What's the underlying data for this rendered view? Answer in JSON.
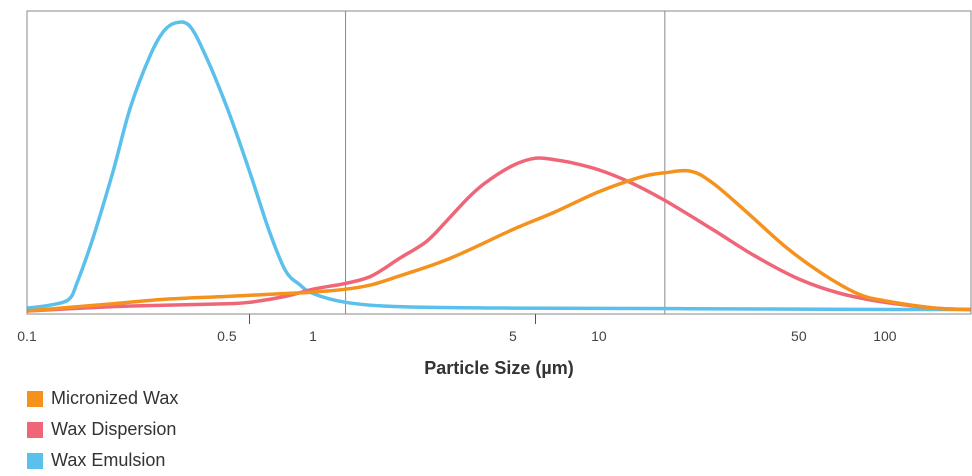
{
  "chart_data": {
    "type": "line",
    "title": "",
    "xlabel": "Particle Size (µm)",
    "ylabel": "",
    "x_scale": "log",
    "xlim": [
      0.1,
      200
    ],
    "ylim": [
      0,
      100
    ],
    "x_ticks": [
      {
        "value": 0.1,
        "label": "0.1"
      },
      {
        "value": 0.5,
        "label": "0.5"
      },
      {
        "value": 1,
        "label": "1"
      },
      {
        "value": 5,
        "label": "5"
      },
      {
        "value": 10,
        "label": "10"
      },
      {
        "value": 50,
        "label": "50"
      },
      {
        "value": 100,
        "label": "100"
      }
    ],
    "x_minor_ticks": [
      0.6,
      6
    ],
    "vertical_lines": [
      1.3,
      17
    ],
    "legend_position": "bottom-left",
    "series": [
      {
        "name": "Micronized Wax",
        "color": "#F5921E",
        "points": [
          [
            0.1,
            0
          ],
          [
            0.2,
            2.5
          ],
          [
            0.3,
            4
          ],
          [
            0.5,
            5
          ],
          [
            0.8,
            6
          ],
          [
            1.0,
            6.5
          ],
          [
            1.3,
            7.5
          ],
          [
            1.6,
            9
          ],
          [
            2.0,
            12
          ],
          [
            3,
            18
          ],
          [
            5,
            28
          ],
          [
            7,
            34
          ],
          [
            10,
            41
          ],
          [
            14,
            46
          ],
          [
            17,
            47.5
          ],
          [
            21,
            48
          ],
          [
            25,
            44
          ],
          [
            32,
            35
          ],
          [
            45,
            22
          ],
          [
            60,
            13
          ],
          [
            80,
            6
          ],
          [
            100,
            3.5
          ],
          [
            150,
            1
          ],
          [
            200,
            0.5
          ]
        ]
      },
      {
        "name": "Wax Dispersion",
        "color": "#EE6677",
        "points": [
          [
            0.1,
            0
          ],
          [
            0.2,
            1.5
          ],
          [
            0.3,
            2
          ],
          [
            0.5,
            2.5
          ],
          [
            0.6,
            3
          ],
          [
            0.8,
            5
          ],
          [
            1.0,
            7.5
          ],
          [
            1.3,
            9.5
          ],
          [
            1.6,
            12
          ],
          [
            2.0,
            18
          ],
          [
            2.5,
            24
          ],
          [
            3,
            32
          ],
          [
            3.5,
            39
          ],
          [
            4,
            44
          ],
          [
            5,
            50
          ],
          [
            6,
            52.5
          ],
          [
            7,
            52
          ],
          [
            8,
            51
          ],
          [
            10,
            48.5
          ],
          [
            13,
            44
          ],
          [
            17,
            38
          ],
          [
            25,
            28
          ],
          [
            35,
            19
          ],
          [
            50,
            11
          ],
          [
            70,
            6
          ],
          [
            100,
            3
          ],
          [
            150,
            1
          ],
          [
            200,
            0.5
          ]
        ]
      },
      {
        "name": "Wax Emulsion",
        "color": "#5BC0EB",
        "points": [
          [
            0.1,
            1
          ],
          [
            0.12,
            2
          ],
          [
            0.14,
            4
          ],
          [
            0.15,
            10
          ],
          [
            0.17,
            25
          ],
          [
            0.2,
            48
          ],
          [
            0.23,
            70
          ],
          [
            0.27,
            88
          ],
          [
            0.3,
            96
          ],
          [
            0.33,
            99
          ],
          [
            0.37,
            98
          ],
          [
            0.42,
            88
          ],
          [
            0.5,
            70
          ],
          [
            0.6,
            48
          ],
          [
            0.7,
            28
          ],
          [
            0.8,
            14
          ],
          [
            0.9,
            9
          ],
          [
            1.0,
            6
          ],
          [
            1.3,
            3
          ],
          [
            2,
            1.5
          ],
          [
            5,
            1
          ],
          [
            20,
            0.8
          ],
          [
            100,
            0.5
          ],
          [
            200,
            0.5
          ]
        ]
      }
    ]
  }
}
